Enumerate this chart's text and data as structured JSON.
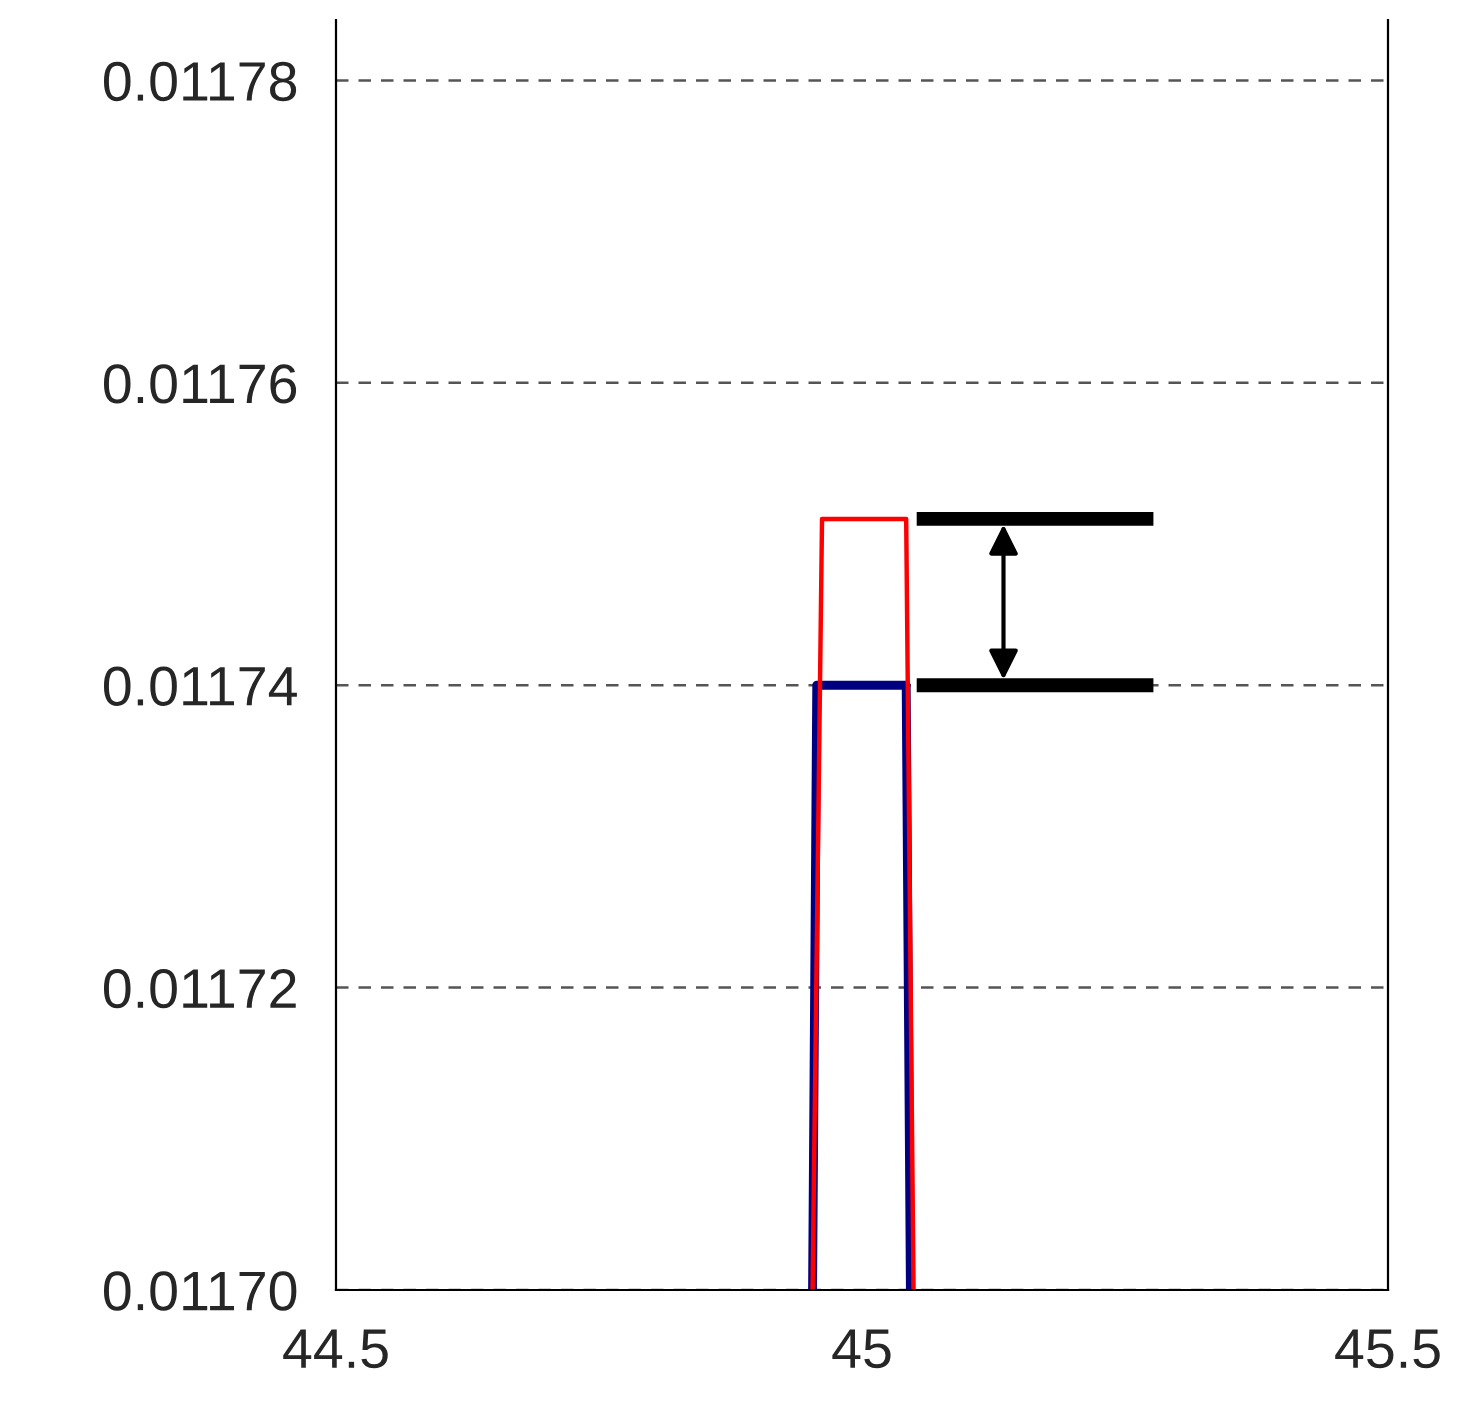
{
  "chart_data": {
    "type": "line",
    "x": [
      44.953,
      44.962,
      45.042,
      45.049
    ],
    "series": [
      {
        "color": "#000080",
        "x": [
          44.953,
          44.957,
          45.042,
          45.046
        ],
        "values": [
          0.0117,
          0.01174,
          0.01174,
          0.0117
        ]
      },
      {
        "color": "#ff0000",
        "values": [
          0.0117,
          0.011751,
          0.011751,
          0.0117
        ]
      }
    ],
    "xlim": [
      44.5,
      45.5
    ],
    "xticks": [
      44.5,
      45,
      45.5
    ],
    "ylim": [
      0.0117,
      0.011784
    ],
    "yticks": [
      {
        "value": 0.0117,
        "label": "0.01170"
      },
      {
        "value": 0.01172,
        "label": "0.01172"
      },
      {
        "value": 0.01174,
        "label": "0.01174"
      },
      {
        "value": 0.01176,
        "label": "0.01176"
      },
      {
        "value": 0.01178,
        "label": "0.01178"
      }
    ],
    "grid": "y",
    "line_style": "solid",
    "marker": "none"
  }
}
